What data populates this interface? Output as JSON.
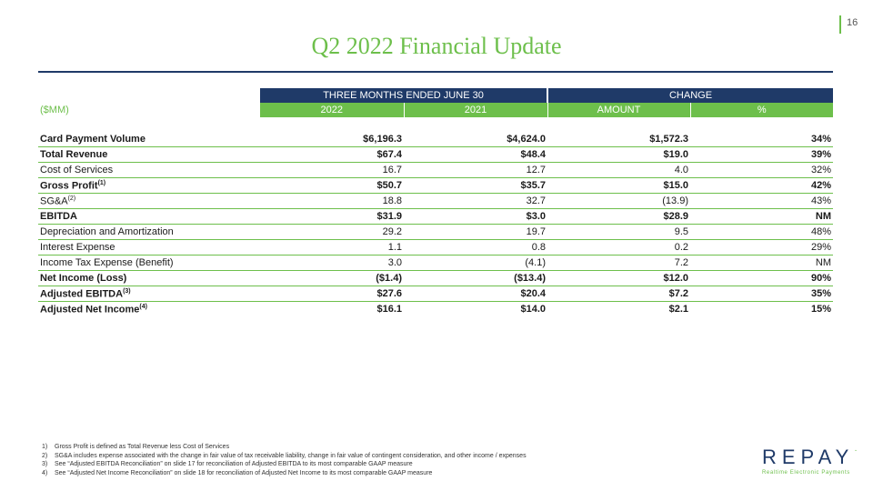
{
  "page_number": "16",
  "title": "Q2 2022 Financial Update",
  "table": {
    "group_headers": [
      "THREE MONTHS ENDED JUNE 30",
      "CHANGE"
    ],
    "units_label": "($MM)",
    "columns": [
      "2022",
      "2021",
      "AMOUNT",
      "%"
    ],
    "rows": [
      {
        "label": "Card Payment Volume",
        "sup": "",
        "bold": true,
        "values": [
          "$6,196.3",
          "$4,624.0",
          "$1,572.3",
          "34%"
        ]
      },
      {
        "label": "Total Revenue",
        "sup": "",
        "bold": true,
        "values": [
          "$67.4",
          "$48.4",
          "$19.0",
          "39%"
        ]
      },
      {
        "label": "Cost of Services",
        "sup": "",
        "bold": false,
        "values": [
          "16.7",
          "12.7",
          "4.0",
          "32%"
        ]
      },
      {
        "label": "Gross Profit",
        "sup": "(1)",
        "bold": true,
        "values": [
          "$50.7",
          "$35.7",
          "$15.0",
          "42%"
        ]
      },
      {
        "label": "SG&A",
        "sup": "(2)",
        "bold": false,
        "values": [
          "18.8",
          "32.7",
          "(13.9)",
          "43%"
        ]
      },
      {
        "label": "EBITDA",
        "sup": "",
        "bold": true,
        "values": [
          "$31.9",
          "$3.0",
          "$28.9",
          "NM"
        ]
      },
      {
        "label": "Depreciation and Amortization",
        "sup": "",
        "bold": false,
        "values": [
          "29.2",
          "19.7",
          "9.5",
          "48%"
        ]
      },
      {
        "label": "Interest Expense",
        "sup": "",
        "bold": false,
        "values": [
          "1.1",
          "0.8",
          "0.2",
          "29%"
        ]
      },
      {
        "label": "Income Tax Expense (Benefit)",
        "sup": "",
        "bold": false,
        "values": [
          "3.0",
          "(4.1)",
          "7.2",
          "NM"
        ]
      },
      {
        "label": "Net Income (Loss)",
        "sup": "",
        "bold": true,
        "values": [
          "($1.4)",
          "($13.4)",
          "$12.0",
          "90%"
        ]
      },
      {
        "label": "Adjusted EBITDA",
        "sup": "(3)",
        "bold": true,
        "values": [
          "$27.6",
          "$20.4",
          "$7.2",
          "35%"
        ]
      },
      {
        "label": "Adjusted Net Income",
        "sup": "(4)",
        "bold": true,
        "values": [
          "$16.1",
          "$14.0",
          "$2.1",
          "15%"
        ]
      }
    ]
  },
  "footnotes": [
    {
      "n": "1)",
      "text": "Gross Profit is defined as Total Revenue less Cost of Services"
    },
    {
      "n": "2)",
      "text": "SG&A includes expense associated with the change in fair value of tax receivable liability, change in fair value of contingent consideration, and other income / expenses"
    },
    {
      "n": "3)",
      "text": "See “Adjusted EBITDA Reconciliation” on slide 17 for reconciliation of Adjusted EBITDA to its most comparable GAAP measure"
    },
    {
      "n": "4)",
      "text": "See “Adjusted Net Income Reconciliation” on slide 18 for reconciliation of Adjusted Net Income to its most comparable GAAP measure"
    }
  ],
  "logo": {
    "word": "REPAY",
    "tagline": "Realtime Electronic Payments"
  },
  "colors": {
    "navy": "#1f3a68",
    "green": "#6dbf4b"
  }
}
